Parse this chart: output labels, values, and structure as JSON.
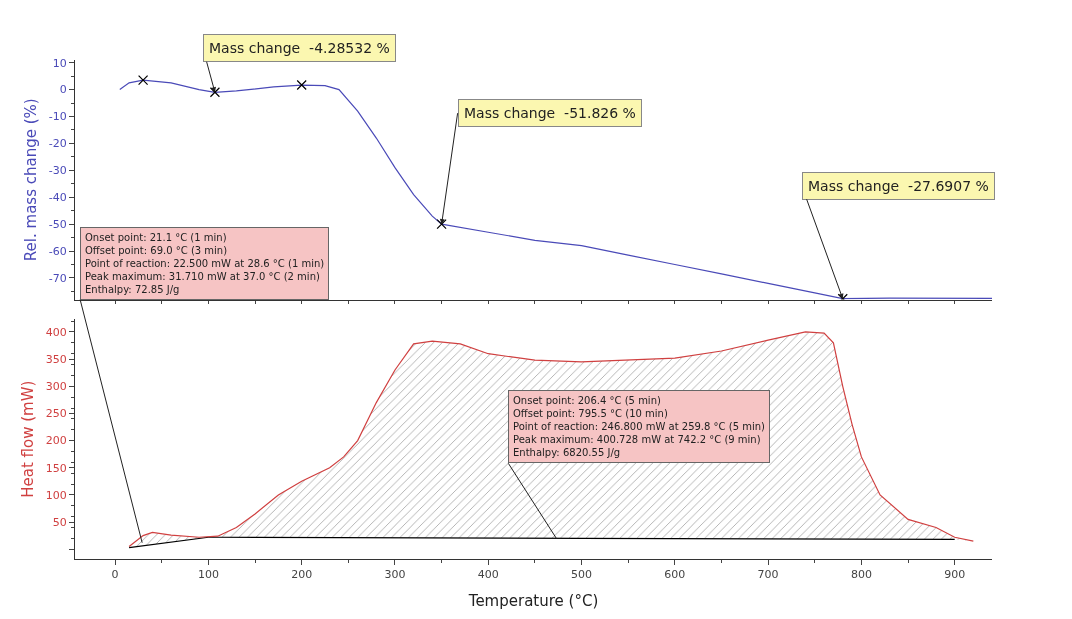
{
  "chart_data": [
    {
      "type": "line",
      "ylabel": "Rel. mass change (%)",
      "xlim": [
        -43,
        940
      ],
      "ylim": [
        -78,
        11
      ],
      "yticks": [
        10,
        0,
        -10,
        -20,
        -30,
        -40,
        -50,
        -60,
        -70
      ],
      "tick_labels": "y",
      "series": [
        {
          "color": "#4a4ab8",
          "x": [
            5,
            15,
            30,
            60,
            90,
            107,
            130,
            170,
            200,
            225,
            240,
            260,
            280,
            300,
            320,
            340,
            350,
            400,
            450,
            500,
            550,
            600,
            650,
            700,
            750,
            780,
            830,
            940
          ],
          "values": [
            0,
            2.5,
            3.5,
            2.5,
            0,
            -1,
            -0.5,
            1,
            1.7,
            1.5,
            0,
            -8,
            -18,
            -29,
            -39,
            -47,
            -50,
            -53,
            -56,
            -58,
            -61.5,
            -65,
            -68.5,
            -72,
            -75.5,
            -77.7,
            -77.5,
            -77.6
          ]
        },
        {
          "type": "scatter",
          "marker": "cross",
          "color": "#000000",
          "x": [
            30,
            107,
            200,
            350,
            780
          ],
          "values": [
            3.5,
            -1,
            1.7,
            -50,
            -77.7
          ]
        }
      ],
      "annotations": [
        {
          "text": "Mass change  -4.28532 %",
          "x": 107,
          "y": -1
        },
        {
          "text": "Mass change  -51.826 %",
          "x": 350,
          "y": -50
        },
        {
          "text": "Mass change  -27.6907 %",
          "x": 780,
          "y": -77.7
        }
      ]
    },
    {
      "type": "line",
      "xlabel": "Temperature (°C)",
      "ylabel": "Heat flow (mW)",
      "xlim": [
        -43,
        940
      ],
      "xticks": [
        0,
        100,
        200,
        300,
        400,
        500,
        600,
        700,
        800,
        900
      ],
      "ylim": [
        -18,
        423
      ],
      "yticks": [
        {
          "value": 0,
          "label": null
        },
        50,
        100,
        150,
        200,
        250,
        300,
        350,
        400
      ],
      "series": [
        {
          "color": "#000000",
          "x": [
            15,
            100,
            110,
            500,
            900
          ],
          "values": [
            3,
            22,
            22,
            20,
            18
          ]
        },
        {
          "type": "area",
          "color": "#d04040",
          "x": [
            15,
            30,
            40,
            60,
            90,
            110,
            130,
            150,
            175,
            200,
            230,
            245,
            260,
            280,
            300,
            320,
            340,
            370,
            400,
            450,
            500,
            600,
            650,
            700,
            740,
            760,
            770,
            780,
            790,
            800,
            820,
            850,
            880,
            900,
            920
          ],
          "values": [
            5,
            25,
            31,
            26,
            22,
            24,
            40,
            65,
            100,
            125,
            150,
            170,
            200,
            270,
            330,
            378,
            383,
            378,
            360,
            348,
            345,
            352,
            365,
            385,
            400,
            398,
            380,
            300,
            230,
            170,
            100,
            55,
            40,
            22,
            15
          ]
        }
      ],
      "annotations": [
        {
          "text": "Onset point: 21.1 °C (1 min)\nOffset point: 69.0 °C (3 min)\nPoint of reaction: 22.500 mW at 28.6 °C (1 min)\nPeak maximum: 31.710 mW at 37.0 °C (2 min)\nEnthalpy: 72.85 J/g",
          "x": 29,
          "y": 12
        },
        {
          "text": "Onset point: 206.4 °C (5 min)\nOffset point: 795.5 °C (10 min)\nPoint of reaction: 246.800 mW at 259.8 °C (5 min)\nPeak maximum: 400.728 mW at 742.2 °C (9 min)\nEnthalpy: 6820.55 J/g",
          "x": 473,
          "y": 20
        }
      ]
    }
  ]
}
